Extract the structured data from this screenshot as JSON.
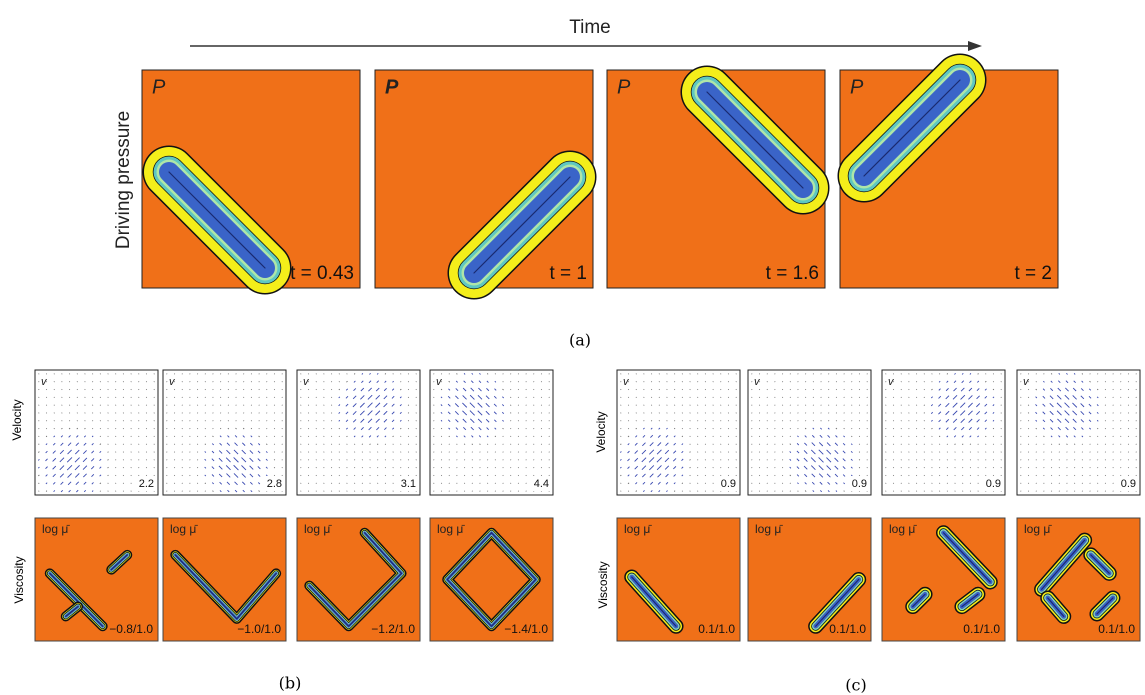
{
  "header": {
    "title": "Time",
    "ylabel": "Driving pressure"
  },
  "panel_a": {
    "frames": [
      {
        "symbol": "P",
        "time": "t = 0.43"
      },
      {
        "symbol": "P",
        "time": "t = 1"
      },
      {
        "symbol": "P",
        "time": "t = 1.6"
      },
      {
        "symbol": "P",
        "time": "t = 2"
      }
    ],
    "caption": "(a)"
  },
  "panel_b": {
    "velocity_label": "Velocity",
    "viscosity_label": "Viscosity",
    "velocity_frames": [
      {
        "symbol": "v",
        "value": "2.2"
      },
      {
        "symbol": "v",
        "value": "2.8"
      },
      {
        "symbol": "v",
        "value": "3.1"
      },
      {
        "symbol": "v",
        "value": "4.4"
      }
    ],
    "viscosity_frames": [
      {
        "symbol": "log μ̄",
        "value": "−0.8/1.0"
      },
      {
        "symbol": "log μ̄",
        "value": "−1.0/1.0"
      },
      {
        "symbol": "log μ̄",
        "value": "−1.2/1.0"
      },
      {
        "symbol": "log μ̄",
        "value": "−1.4/1.0"
      }
    ],
    "caption": "(b)"
  },
  "panel_c": {
    "velocity_label": "Velocity",
    "viscosity_label": "Viscosity",
    "velocity_frames": [
      {
        "symbol": "v",
        "value": "0.9"
      },
      {
        "symbol": "v",
        "value": "0.9"
      },
      {
        "symbol": "v",
        "value": "0.9"
      },
      {
        "symbol": "v",
        "value": "0.9"
      }
    ],
    "viscosity_frames": [
      {
        "symbol": "log μ̄",
        "value": "0.1/1.0"
      },
      {
        "symbol": "log μ̄",
        "value": "0.1/1.0"
      },
      {
        "symbol": "log μ̄",
        "value": "0.1/1.0"
      },
      {
        "symbol": "log μ̄",
        "value": "0.1/1.0"
      }
    ],
    "caption": "(c)"
  }
}
